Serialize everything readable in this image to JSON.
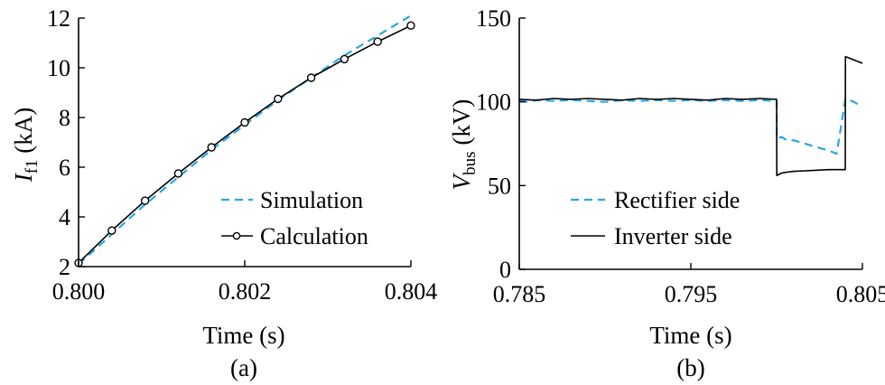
{
  "chart_data": [
    {
      "type": "line",
      "panel_label": "(a)",
      "xlabel": "Time (s)",
      "ylabel": {
        "symbol": "I",
        "subscript": "f1",
        "unit": " (kA)"
      },
      "xlim": [
        0.8,
        0.804
      ],
      "ylim": [
        2,
        12
      ],
      "xticks": [
        0.8,
        0.802,
        0.804
      ],
      "xtick_labels": [
        "0.800",
        "0.802",
        "0.804"
      ],
      "yticks": [
        2,
        4,
        6,
        8,
        10,
        12
      ],
      "ytick_labels": [
        "2",
        "4",
        "6",
        "8",
        "10",
        "12"
      ],
      "legend_position": "bottom-right",
      "series": [
        {
          "name": "Simulation",
          "color": "#29a8e0",
          "style": "dashed",
          "x": [
            0.8,
            0.8004,
            0.8008,
            0.8012,
            0.8016,
            0.802,
            0.8024,
            0.8028,
            0.8032,
            0.8036,
            0.804
          ],
          "y": [
            2.1,
            3.3,
            4.5,
            5.6,
            6.7,
            7.7,
            8.7,
            9.6,
            10.5,
            11.3,
            12.1
          ]
        },
        {
          "name": "Calculation",
          "color": "#000000",
          "style": "solid-marker",
          "x": [
            0.8,
            0.8004,
            0.8008,
            0.8012,
            0.8016,
            0.802,
            0.8024,
            0.8028,
            0.8032,
            0.8036,
            0.804
          ],
          "y": [
            2.15,
            3.45,
            4.65,
            5.75,
            6.8,
            7.8,
            8.75,
            9.6,
            10.35,
            11.05,
            11.7
          ]
        }
      ]
    },
    {
      "type": "line",
      "panel_label": "(b)",
      "xlabel": "Time (s)",
      "ylabel": {
        "symbol": "V",
        "subscript": "bus",
        "unit": " (kV)"
      },
      "xlim": [
        0.785,
        0.805
      ],
      "ylim": [
        0,
        150
      ],
      "xticks": [
        0.785,
        0.795,
        0.805
      ],
      "xtick_labels": [
        "0.785",
        "0.795",
        "0.805"
      ],
      "yticks": [
        0,
        50,
        100,
        150
      ],
      "ytick_labels": [
        "0",
        "50",
        "100",
        "150"
      ],
      "legend_position": "bottom-left",
      "series": [
        {
          "name": "Rectifier side",
          "color": "#29a8e0",
          "style": "dashed",
          "x": [
            0.785,
            0.7855,
            0.786,
            0.787,
            0.788,
            0.789,
            0.79,
            0.791,
            0.792,
            0.793,
            0.794,
            0.795,
            0.796,
            0.797,
            0.798,
            0.799,
            0.8,
            0.80001,
            0.8003,
            0.8006,
            0.801,
            0.802,
            0.803,
            0.8035,
            0.80401,
            0.8045,
            0.805
          ],
          "y": [
            100.5,
            100,
            101,
            100.5,
            101,
            100.5,
            100,
            101,
            100.5,
            101,
            100.5,
            101,
            100.5,
            101,
            100.5,
            101,
            100.5,
            78,
            79,
            77,
            77,
            74,
            71,
            69,
            102,
            100,
            97
          ]
        },
        {
          "name": "Inverter side",
          "color": "#000000",
          "style": "solid",
          "x": [
            0.785,
            0.786,
            0.787,
            0.788,
            0.789,
            0.79,
            0.791,
            0.792,
            0.793,
            0.794,
            0.795,
            0.796,
            0.797,
            0.798,
            0.799,
            0.8,
            0.80001,
            0.8003,
            0.8006,
            0.801,
            0.802,
            0.803,
            0.804,
            0.80401,
            0.8045,
            0.805
          ],
          "y": [
            101.5,
            101,
            102,
            101.5,
            102,
            101.5,
            101,
            102,
            101.5,
            102,
            101.5,
            101,
            102,
            101.5,
            102,
            101.5,
            56,
            57.5,
            58,
            58.5,
            59,
            59.5,
            59.5,
            127,
            125,
            123
          ]
        }
      ]
    }
  ]
}
